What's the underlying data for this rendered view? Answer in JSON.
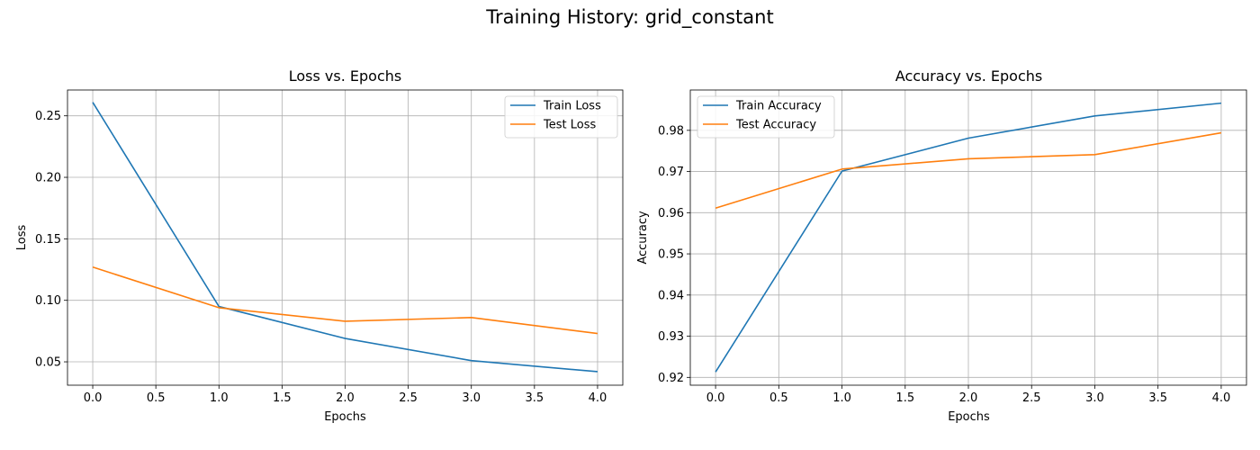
{
  "figure": {
    "suptitle": "Training History: grid_constant"
  },
  "colors": {
    "train": "#1f77b4",
    "test": "#ff7f0e",
    "grid": "#b0b0b0"
  },
  "chart_data": [
    {
      "type": "line",
      "title": "Loss vs. Epochs",
      "xlabel": "Epochs",
      "ylabel": "Loss",
      "x": [
        0,
        1,
        2,
        3,
        4
      ],
      "xlim": [
        -0.2,
        4.2
      ],
      "ylim": [
        0.031,
        0.271
      ],
      "xticks": [
        0,
        0.5,
        1,
        1.5,
        2,
        2.5,
        3,
        3.5,
        4
      ],
      "xtick_labels": [
        "0.0",
        "0.5",
        "1.0",
        "1.5",
        "2.0",
        "2.5",
        "3.0",
        "3.5",
        "4.0"
      ],
      "yticks": [
        0.05,
        0.1,
        0.15,
        0.2,
        0.25
      ],
      "ytick_labels": [
        "0.05",
        "0.10",
        "0.15",
        "0.20",
        "0.25"
      ],
      "grid": true,
      "legend": "top-right",
      "series": [
        {
          "name": "Train Loss",
          "color": "#1f77b4",
          "values": [
            0.261,
            0.095,
            0.069,
            0.051,
            0.042
          ]
        },
        {
          "name": "Test Loss",
          "color": "#ff7f0e",
          "values": [
            0.127,
            0.094,
            0.083,
            0.086,
            0.073
          ]
        }
      ]
    },
    {
      "type": "line",
      "title": "Accuracy vs. Epochs",
      "xlabel": "Epochs",
      "ylabel": "Accuracy",
      "x": [
        0,
        1,
        2,
        3,
        4
      ],
      "xlim": [
        -0.2,
        4.2
      ],
      "ylim": [
        0.9181,
        0.9898
      ],
      "xticks": [
        0,
        0.5,
        1,
        1.5,
        2,
        2.5,
        3,
        3.5,
        4
      ],
      "xtick_labels": [
        "0.0",
        "0.5",
        "1.0",
        "1.5",
        "2.0",
        "2.5",
        "3.0",
        "3.5",
        "4.0"
      ],
      "yticks": [
        0.92,
        0.93,
        0.94,
        0.95,
        0.96,
        0.97,
        0.98
      ],
      "ytick_labels": [
        "0.92",
        "0.93",
        "0.94",
        "0.95",
        "0.96",
        "0.97",
        "0.98"
      ],
      "grid": true,
      "legend": "top-left",
      "series": [
        {
          "name": "Train Accuracy",
          "color": "#1f77b4",
          "values": [
            0.9213,
            0.9701,
            0.9781,
            0.9835,
            0.9866
          ]
        },
        {
          "name": "Test Accuracy",
          "color": "#ff7f0e",
          "values": [
            0.9611,
            0.9706,
            0.9731,
            0.9741,
            0.9794
          ]
        }
      ]
    }
  ]
}
